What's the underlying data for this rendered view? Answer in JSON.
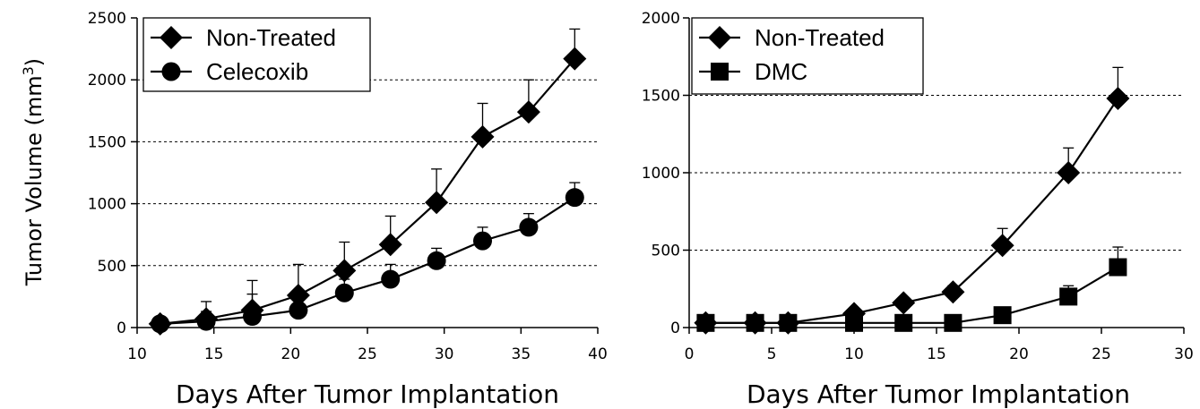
{
  "chart_data": [
    {
      "type": "line",
      "xlabel": "Days After Tumor Implantation",
      "ylabel": "Tumor Volume (mm",
      "ylabel_sup": "3",
      "ylabel_close": ")",
      "xlim": [
        10,
        40
      ],
      "ylim": [
        0,
        2500
      ],
      "xticks": [
        10,
        15,
        20,
        25,
        30,
        35,
        40
      ],
      "yticks": [
        0,
        500,
        1000,
        1500,
        2000,
        2500
      ],
      "gridlines": [
        500,
        1000,
        1500,
        2000
      ],
      "legend_position": "top-left",
      "series": [
        {
          "name": "Non-Treated",
          "marker": "diamond",
          "x": [
            11.5,
            14.5,
            17.5,
            20.5,
            23.5,
            26.5,
            29.5,
            32.5,
            35.5,
            38.5
          ],
          "y": [
            30,
            70,
            140,
            260,
            460,
            670,
            1010,
            1540,
            1740,
            2170
          ],
          "err": [
            30,
            140,
            240,
            250,
            230,
            230,
            270,
            270,
            260,
            240
          ]
        },
        {
          "name": "Celecoxib",
          "marker": "circle",
          "x": [
            11.5,
            14.5,
            17.5,
            20.5,
            23.5,
            26.5,
            29.5,
            32.5,
            35.5,
            38.5
          ],
          "y": [
            30,
            50,
            90,
            140,
            280,
            390,
            540,
            700,
            810,
            1050
          ],
          "err": [
            20,
            80,
            180,
            120,
            110,
            120,
            100,
            110,
            110,
            120
          ]
        }
      ]
    },
    {
      "type": "line",
      "xlabel": "Days After Tumor Implantation",
      "xlim": [
        0,
        30
      ],
      "ylim": [
        0,
        2000
      ],
      "xticks": [
        0,
        5,
        10,
        15,
        20,
        25,
        30
      ],
      "yticks": [
        0,
        500,
        1000,
        1500,
        2000
      ],
      "gridlines": [
        500,
        1000,
        1500
      ],
      "legend_position": "top-left",
      "series": [
        {
          "name": "Non-Treated",
          "marker": "diamond",
          "x": [
            1,
            4,
            6,
            10,
            13,
            16,
            19,
            23,
            26
          ],
          "y": [
            30,
            30,
            30,
            90,
            160,
            230,
            530,
            1000,
            1480
          ],
          "err": [
            0,
            0,
            0,
            20,
            30,
            40,
            110,
            160,
            200
          ]
        },
        {
          "name": "DMC",
          "marker": "square",
          "x": [
            1,
            4,
            6,
            10,
            13,
            16,
            19,
            23,
            26
          ],
          "y": [
            30,
            30,
            30,
            30,
            30,
            30,
            80,
            200,
            390
          ],
          "err": [
            0,
            0,
            0,
            0,
            0,
            0,
            20,
            70,
            130
          ]
        }
      ]
    }
  ]
}
